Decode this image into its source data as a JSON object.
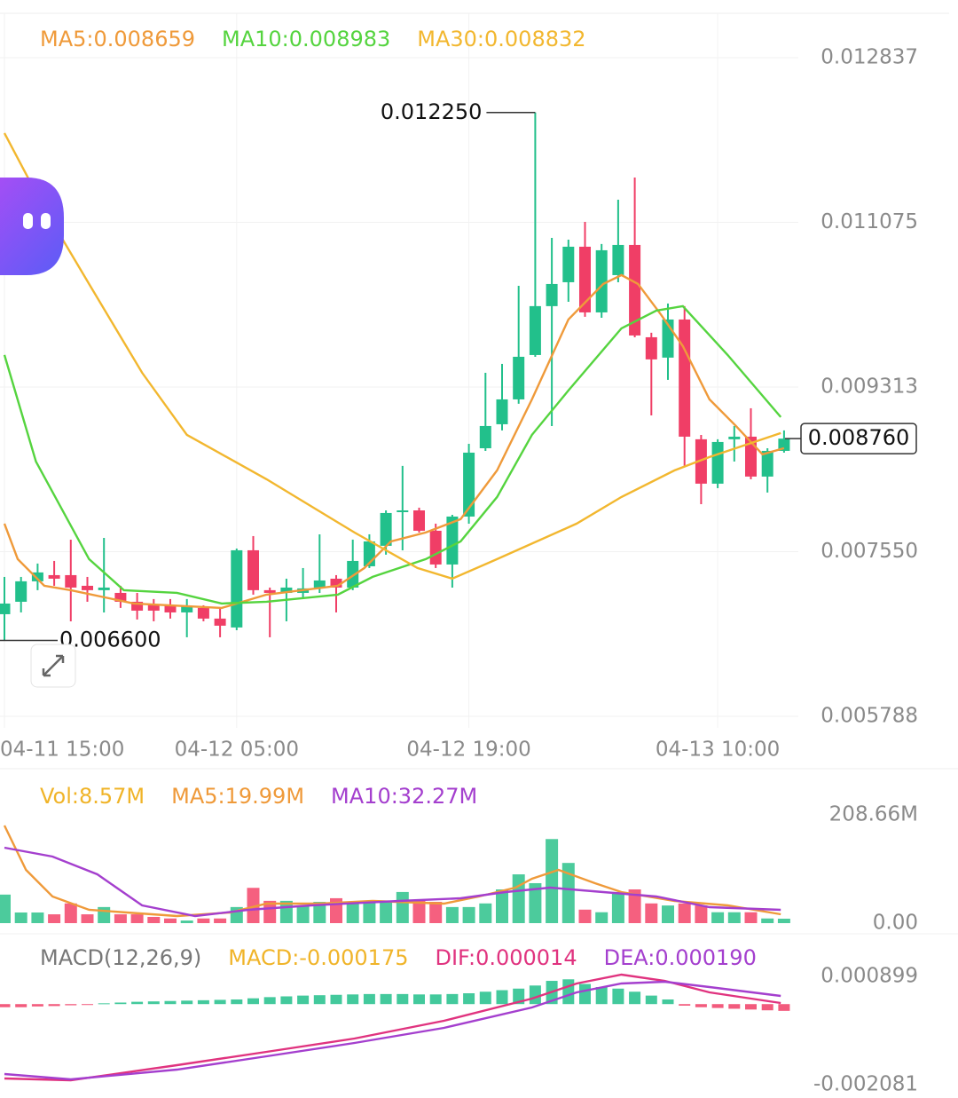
{
  "chart_data": [
    {
      "type": "candlestick",
      "categories": [
        "04-11 15:00",
        null,
        null,
        null,
        null,
        null,
        null,
        null,
        null,
        null,
        null,
        null,
        null,
        null,
        "04-12 05:00",
        null,
        null,
        null,
        null,
        null,
        null,
        null,
        null,
        null,
        null,
        null,
        null,
        null,
        "04-12 19:00",
        null,
        null,
        null,
        null,
        null,
        null,
        null,
        null,
        null,
        null,
        null,
        null,
        null,
        null,
        "04-13 10:00",
        null,
        null,
        null,
        null
      ],
      "open": [
        0.006881,
        0.007014,
        0.007233,
        0.007299,
        0.007299,
        0.007185,
        0.007138,
        0.007109,
        0.007014,
        0.006976,
        0.006976,
        0.0069,
        0.006948,
        0.006834,
        0.006739,
        0.007565,
        0.007138,
        0.007109,
        0.007109,
        0.007166,
        0.007261,
        0.007166,
        0.007394,
        0.007613,
        0.007973,
        0.007992,
        0.007774,
        0.007413,
        0.007926,
        0.008657,
        0.008914,
        0.00918,
        0.009655,
        0.010178,
        0.010434,
        0.010814,
        0.010111,
        0.01051,
        0.010833,
        0.009845,
        0.009627,
        0.010035,
        0.008753,
        0.008278,
        0.008753,
        0.008781,
        0.008354,
        0.008629
      ],
      "high": [
        0.00728,
        0.00728,
        0.007423,
        0.007451,
        0.007679,
        0.00728,
        0.007698,
        0.007185,
        0.007109,
        0.007043,
        0.007043,
        0.007043,
        0.006976,
        0.006948,
        0.007584,
        0.007717,
        0.007166,
        0.007261,
        0.007375,
        0.007736,
        0.007299,
        0.007679,
        0.007736,
        0.007992,
        0.008468,
        0.008021,
        0.00785,
        0.007945,
        0.008705,
        0.009465,
        0.00956,
        0.010396,
        0.01225,
        0.010909,
        0.01089,
        0.01108,
        0.010843,
        0.011317,
        0.011555,
        0.009893,
        0.010206,
        0.010178,
        0.0088,
        0.008753,
        0.008895,
        0.009085,
        0.008657,
        0.008848
      ],
      "low": [
        0.0066,
        0.0069,
        0.007138,
        0.007185,
        0.006805,
        0.007014,
        0.0069,
        0.006948,
        0.006824,
        0.006805,
        0.006834,
        0.006634,
        0.006805,
        0.006634,
        0.00671,
        0.00709,
        0.006634,
        0.006805,
        0.007043,
        0.007109,
        0.0069,
        0.007138,
        0.007375,
        0.007518,
        0.007565,
        0.007755,
        0.007375,
        0.007166,
        0.00785,
        0.008629,
        0.008848,
        0.009133,
        0.009636,
        0.008895,
        0.010225,
        0.010064,
        0.010054,
        0.010434,
        0.009845,
        0.009009,
        0.009389,
        0.008468,
        0.008059,
        0.00823,
        0.008515,
        0.008325,
        0.008183,
        0.00861
      ],
      "close": [
        0.006995,
        0.007233,
        0.007328,
        0.007261,
        0.007166,
        0.007138,
        0.007166,
        0.007014,
        0.006919,
        0.006919,
        0.0069,
        0.006967,
        0.006834,
        0.006758,
        0.007565,
        0.007138,
        0.007109,
        0.007166,
        0.007157,
        0.007242,
        0.007166,
        0.007451,
        0.00766,
        0.007964,
        0.007992,
        0.007774,
        0.007413,
        0.007926,
        0.00861,
        0.008895,
        0.00918,
        0.009636,
        0.010178,
        0.010415,
        0.010814,
        0.010111,
        0.010776,
        0.010833,
        0.009864,
        0.009608,
        0.010035,
        0.008781,
        0.008278,
        0.008724,
        0.008781,
        0.008354,
        0.008629,
        0.00876
      ],
      "up_color": "#22c08b",
      "down_color": "#f03e66",
      "ylim": [
        0.005788,
        0.012837
      ],
      "yticks": [
        0.012837,
        0.011075,
        0.009313,
        {
          "value": 0.00755,
          "label": "0.007550"
        },
        0.005788
      ],
      "grid": true,
      "series": [
        {
          "name": "MA5:0.008659",
          "color": "#ef9a3a",
          "x": [
            0,
            0.8,
            2.4,
            4,
            7.8,
            13.1,
            15.8,
            20.1,
            21.7,
            23.3,
            25.4,
            27.5,
            29.7,
            31.8,
            34,
            36.1,
            37.2,
            38.2,
            39.6,
            40.9,
            42.5,
            44.1,
            45.7,
            47
          ],
          "values": [
            0.00785,
            0.00747,
            0.007185,
            0.007138,
            0.006995,
            0.006948,
            0.00709,
            0.007185,
            0.007375,
            0.00766,
            0.007755,
            0.007898,
            0.00842,
            0.00918,
            0.010035,
            0.010415,
            0.01051,
            0.010415,
            0.010083,
            0.00975,
            0.00918,
            0.008895,
            0.008591,
            0.008658
          ]
        },
        {
          "name": "MA10:0.008983",
          "color": "#55d43f",
          "x": [
            0,
            1.9,
            5.1,
            7.2,
            10.4,
            13.1,
            15.8,
            20.1,
            22.2,
            25.4,
            27.5,
            29.7,
            31.8,
            34,
            37.2,
            39.3,
            40.9,
            43.6,
            46.8
          ],
          "values": [
            0.009655,
            0.008515,
            0.00747,
            0.007138,
            0.007109,
            0.006995,
            0.007014,
            0.00709,
            0.00728,
            0.00747,
            0.00766,
            0.008135,
            0.0088,
            0.009275,
            0.00994,
            0.01013,
            0.010178,
            0.009655,
            0.00899
          ]
        },
        {
          "name": "MA30:0.008832",
          "color": "#f2b72f",
          "x": [
            0,
            2.4,
            5.1,
            8.3,
            11,
            15.8,
            21.1,
            24.9,
            27,
            29.7,
            34.5,
            37.2,
            40.4,
            42.5,
            46.8
          ],
          "values": [
            0.01203,
            0.011223,
            0.010415,
            0.009465,
            0.0088,
            0.008325,
            0.007755,
            0.007375,
            0.007261,
            0.00747,
            0.00785,
            0.008135,
            0.00842,
            0.008563,
            0.008819
          ]
        }
      ],
      "annotations": [
        {
          "value": 0.01225,
          "label": "0.012250",
          "x": 32
        },
        {
          "value": 0.0066,
          "label": "0.006600",
          "x": 0
        }
      ],
      "last_price": {
        "value": 0.00876,
        "label": "0.008760"
      }
    },
    {
      "type": "volume",
      "label": "Vol:8.57M",
      "label_color": "#f0b429",
      "values": [
        55,
        20.5,
        20.5,
        17,
        38,
        17,
        31,
        17,
        17,
        12,
        9,
        5,
        9,
        9,
        31,
        68,
        43,
        43,
        34,
        41,
        48,
        38,
        39,
        43,
        60,
        43,
        41,
        31,
        31,
        38,
        65,
        94,
        77,
        162,
        116,
        26,
        21,
        60,
        65,
        38,
        34,
        38,
        34,
        21,
        21,
        21,
        9,
        8.57
      ],
      "up_color": "#4ccb9c",
      "down_color": "#f5607f",
      "ylim": [
        0,
        208.66
      ],
      "yticks": [
        {
          "value": 208.66,
          "label": "208.66M"
        },
        {
          "value": 0,
          "label": "0.00"
        }
      ],
      "series": [
        {
          "name": "MA5:19.99M",
          "color": "#ef9a3a",
          "x": [
            0,
            1.3,
            2.9,
            5.1,
            10.4,
            13.6,
            15.8,
            19,
            22.2,
            26.5,
            28.6,
            30.8,
            31.8,
            33.4,
            35.6,
            37.2,
            40.4,
            43.6,
            46.8
          ],
          "values": [
            188.1,
            102.6,
            51.3,
            25.7,
            13.7,
            20.5,
            37.6,
            37.6,
            42.8,
            37.6,
            51.3,
            68.4,
            85.5,
            102.6,
            76.9,
            59.9,
            42.8,
            34.2,
            17.1
          ]
        },
        {
          "name": "MA10:32.27M",
          "color": "#a43fce",
          "x": [
            0,
            2.9,
            5.6,
            8.3,
            11.5,
            14.7,
            18.5,
            23.8,
            27.5,
            30.2,
            32.9,
            36.1,
            39.3,
            42.5,
            46.8
          ],
          "values": [
            145.4,
            128.3,
            94.1,
            34.2,
            13.7,
            25.7,
            34.2,
            42.8,
            47.9,
            59.9,
            68.4,
            59.9,
            51.3,
            30.8,
            25.7
          ]
        }
      ]
    },
    {
      "type": "macd",
      "title": "MACD(12,26,9)",
      "title_color": "#777777",
      "label": "MACD:-0.000175",
      "label_color": "#f0b429",
      "values": [
        -8e-05,
        -8e-05,
        -6e-05,
        -5e-05,
        -3e-05,
        -1e-05,
        2e-05,
        4e-05,
        6e-05,
        7e-05,
        8e-05,
        9e-05,
        0.0001,
        0.00011,
        0.00012,
        0.00015,
        0.00018,
        0.0002,
        0.00022,
        0.00023,
        0.00024,
        0.00025,
        0.00026,
        0.00026,
        0.00026,
        0.00025,
        0.00025,
        0.00026,
        0.00028,
        0.00032,
        0.00036,
        0.0004,
        0.00048,
        0.0006,
        0.00064,
        0.00052,
        0.00044,
        0.0004,
        0.00032,
        0.00022,
        0.00012,
        -4e-05,
        -8e-05,
        -0.0001,
        -0.00012,
        -0.00014,
        -0.00016,
        -0.000175
      ],
      "up_color": "#22c08b",
      "down_color": "#f03e66",
      "ylim": [
        -0.002081,
        0.000899
      ],
      "yticks": [
        0.000899,
        -0.002081
      ],
      "series": [
        {
          "name": "DIF:0.000014",
          "color": "#e0337f",
          "x": [
            0,
            4,
            10.4,
            15.8,
            21.1,
            26.5,
            31.8,
            34.5,
            37.2,
            39.8,
            42.5,
            46.8
          ],
          "values": [
            -0.001921,
            -0.001966,
            -0.001577,
            -0.001233,
            -0.000889,
            -0.000431,
            0.000143,
            0.000532,
            0.000761,
            0.000601,
            0.000303,
            2.8e-05
          ]
        },
        {
          "name": "DEA:0.000190",
          "color": "#a43fce",
          "x": [
            0,
            4,
            10.4,
            15.8,
            21.1,
            26.5,
            31.8,
            34.5,
            37.2,
            39.8,
            42.5,
            46.8
          ],
          "values": [
            -0.001806,
            -0.001943,
            -0.001691,
            -0.001347,
            -0.001004,
            -0.000614,
            -8.7e-05,
            0.000303,
            0.000532,
            0.000578,
            0.000441,
            0.000211
          ]
        }
      ]
    }
  ]
}
